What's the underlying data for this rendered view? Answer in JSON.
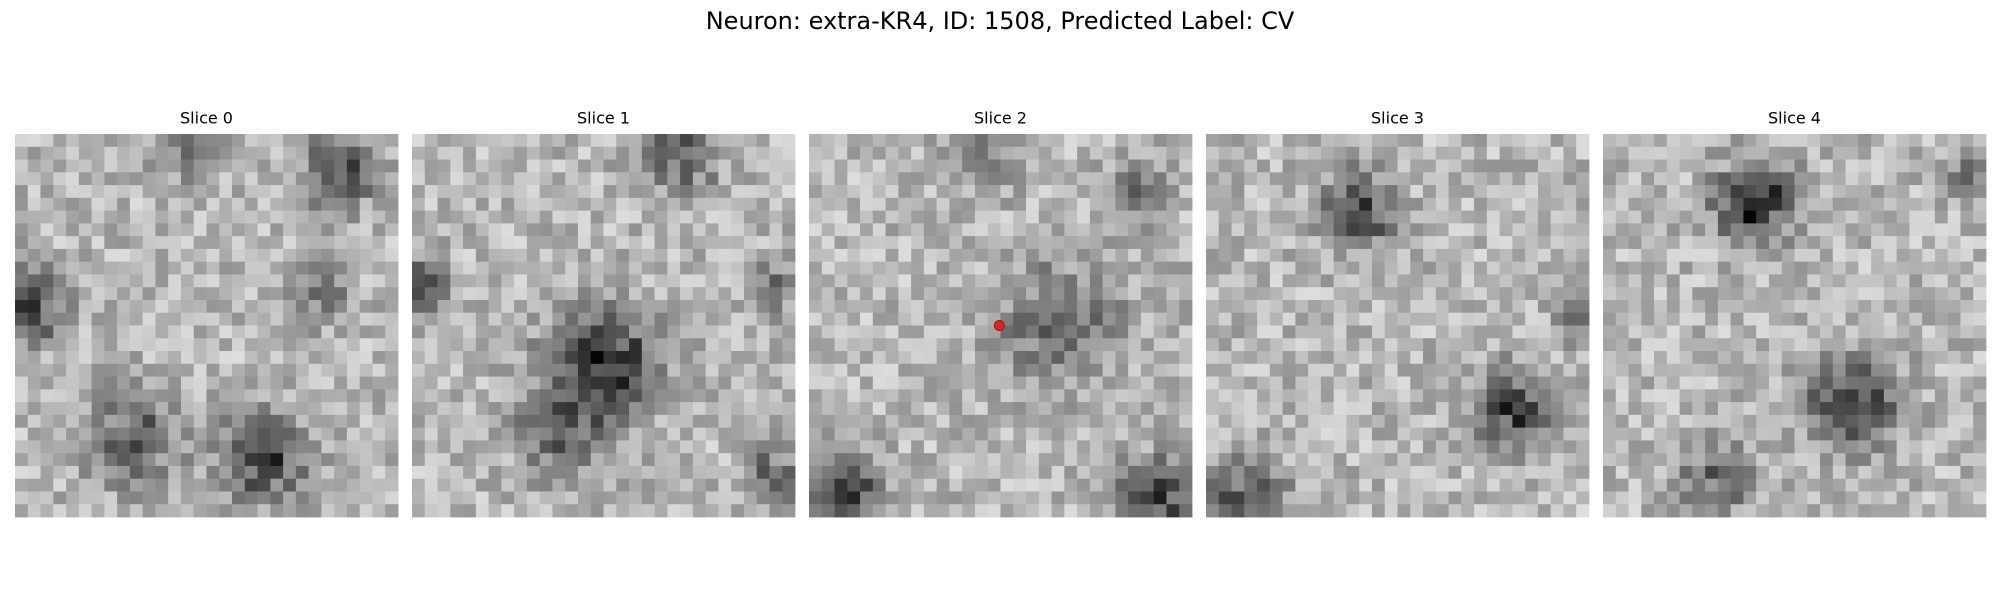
{
  "title": "Neuron: extra-KR4, ID: 1508, Predicted Label: CV",
  "panels": [
    {
      "title": "Slice 0"
    },
    {
      "title": "Slice 1"
    },
    {
      "title": "Slice 2"
    },
    {
      "title": "Slice 3"
    },
    {
      "title": "Slice 4"
    }
  ]
}
